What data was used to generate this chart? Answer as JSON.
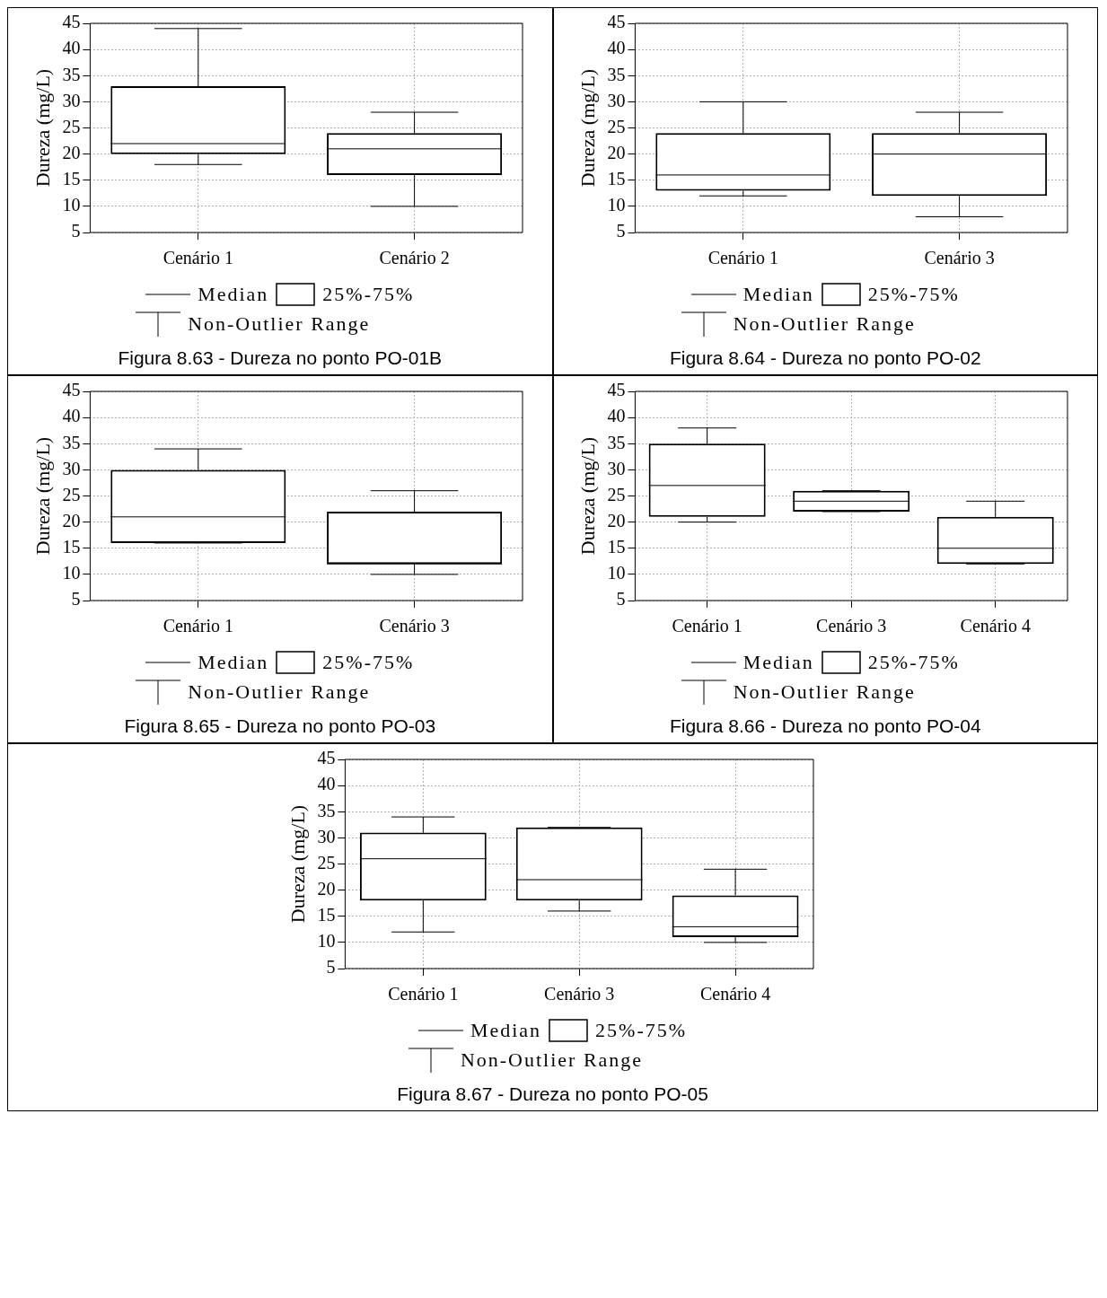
{
  "chart_data": [
    {
      "type": "box",
      "title": "Figura 8.63 - Dureza no ponto PO-01B",
      "ylabel": "Dureza (mg/L)",
      "categories": [
        "Cenário 1",
        "Cenário 2"
      ],
      "boxes": [
        {
          "low": 18,
          "q1": 20,
          "median": 22,
          "q3": 33,
          "high": 44
        },
        {
          "low": 10,
          "q1": 16,
          "median": 21,
          "q3": 24,
          "high": 28
        }
      ],
      "color": "#000000",
      "ylim": [
        5,
        45
      ],
      "yticks": [
        5,
        10,
        15,
        20,
        25,
        30,
        35,
        40,
        45
      ],
      "grid": true,
      "annotations": [
        "Median",
        "25%-75%",
        "Non-Outlier Range"
      ]
    },
    {
      "type": "box",
      "title": "Figura 8.64 - Dureza no ponto PO-02",
      "ylabel": "Dureza (mg/L)",
      "categories": [
        "Cenário 1",
        "Cenário 3"
      ],
      "boxes": [
        {
          "low": 12,
          "q1": 13,
          "median": 16,
          "q3": 24,
          "high": 30
        },
        {
          "low": 8,
          "q1": 12,
          "median": 20,
          "q3": 24,
          "high": 28
        }
      ],
      "color": "#000000",
      "ylim": [
        5,
        45
      ],
      "yticks": [
        5,
        10,
        15,
        20,
        25,
        30,
        35,
        40,
        45
      ],
      "grid": true,
      "annotations": [
        "Median",
        "25%-75%",
        "Non-Outlier Range"
      ]
    },
    {
      "type": "box",
      "title": "Figura 8.65 - Dureza no ponto PO-03",
      "ylabel": "Dureza (mg/L)",
      "categories": [
        "Cenário 1",
        "Cenário 3"
      ],
      "boxes": [
        {
          "low": 16,
          "q1": 16,
          "median": 21,
          "q3": 30,
          "high": 34
        },
        {
          "low": 10,
          "q1": 12,
          "median": 12,
          "q3": 22,
          "high": 26
        }
      ],
      "color": "#000000",
      "ylim": [
        5,
        45
      ],
      "yticks": [
        5,
        10,
        15,
        20,
        25,
        30,
        35,
        40,
        45
      ],
      "grid": true,
      "annotations": [
        "Median",
        "25%-75%",
        "Non-Outlier Range"
      ]
    },
    {
      "type": "box",
      "title": "Figura 8.66 - Dureza no ponto PO-04",
      "ylabel": "Dureza (mg/L)",
      "categories": [
        "Cenário 1",
        "Cenário 3",
        "Cenário 4"
      ],
      "boxes": [
        {
          "low": 20,
          "q1": 21,
          "median": 27,
          "q3": 35,
          "high": 38
        },
        {
          "low": 22,
          "q1": 22,
          "median": 24,
          "q3": 26,
          "high": 26
        },
        {
          "low": 12,
          "q1": 12,
          "median": 15,
          "q3": 21,
          "high": 24
        }
      ],
      "color": "#000000",
      "ylim": [
        5,
        45
      ],
      "yticks": [
        5,
        10,
        15,
        20,
        25,
        30,
        35,
        40,
        45
      ],
      "grid": true,
      "annotations": [
        "Median",
        "25%-75%",
        "Non-Outlier Range"
      ]
    },
    {
      "type": "box",
      "title": "Figura 8.67 - Dureza no ponto PO-05",
      "ylabel": "Dureza (mg/L)",
      "categories": [
        "Cenário 1",
        "Cenário 3",
        "Cenário 4"
      ],
      "boxes": [
        {
          "low": 12,
          "q1": 18,
          "median": 26,
          "q3": 31,
          "high": 34
        },
        {
          "low": 16,
          "q1": 18,
          "median": 22,
          "q3": 32,
          "high": 32
        },
        {
          "low": 10,
          "q1": 11,
          "median": 13,
          "q3": 19,
          "high": 24
        }
      ],
      "color": "#000000",
      "ylim": [
        5,
        45
      ],
      "yticks": [
        5,
        10,
        15,
        20,
        25,
        30,
        35,
        40,
        45
      ],
      "grid": true,
      "annotations": [
        "Median",
        "25%-75%",
        "Non-Outlier Range"
      ]
    }
  ]
}
